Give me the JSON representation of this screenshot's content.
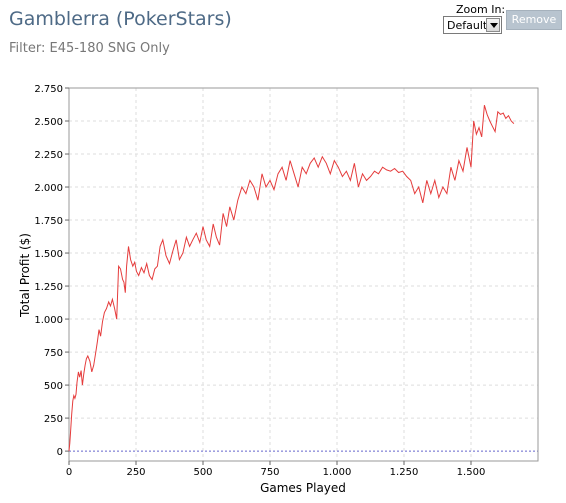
{
  "header": {
    "title": "Gamblerra (PokerStars)",
    "filter": "Filter: E45-180 SNG Only"
  },
  "controls": {
    "zoom_label": "Zoom In:",
    "zoom_value": "Default",
    "remove_label": "Remove"
  },
  "colors": {
    "line": "#e53c3c",
    "zero_line": "#6666cc",
    "grid": "#dddddd"
  },
  "chart_data": {
    "type": "line",
    "xlabel": "Games Played",
    "ylabel": "Total Profit ($)",
    "xlim": [
      0,
      1750
    ],
    "ylim": [
      -75,
      2750
    ],
    "xticks": [
      0,
      250,
      500,
      750,
      1000,
      1250,
      1500
    ],
    "xtick_labels": [
      "0",
      "250",
      "500",
      "750",
      "1.000",
      "1.250",
      "1.500"
    ],
    "yticks": [
      0,
      250,
      500,
      750,
      1000,
      1250,
      1500,
      1750,
      2000,
      2250,
      2500,
      2750
    ],
    "ytick_labels": [
      "0",
      "250",
      "500",
      "750",
      "1.000",
      "1.250",
      "1.500",
      "1.750",
      "2.000",
      "2.250",
      "2.500",
      "2.750"
    ],
    "grid": true,
    "reference_line_y": 0,
    "series": [
      {
        "x": [
          0,
          3,
          6,
          10,
          14,
          18,
          22,
          26,
          30,
          35,
          40,
          45,
          50,
          55,
          60,
          65,
          70,
          78,
          85,
          92,
          100,
          106,
          112,
          118,
          125,
          132,
          140,
          148,
          155,
          162,
          170,
          178,
          185,
          192,
          200,
          205,
          210,
          215,
          222,
          230,
          238,
          245,
          252,
          260,
          270,
          280,
          290,
          300,
          310,
          320,
          330,
          340,
          350,
          362,
          375,
          388,
          400,
          412,
          425,
          438,
          450,
          462,
          475,
          488,
          500,
          512,
          525,
          538,
          550,
          562,
          575,
          588,
          600,
          615,
          630,
          645,
          660,
          675,
          690,
          705,
          720,
          735,
          750,
          765,
          780,
          795,
          810,
          825,
          840,
          855,
          870,
          885,
          900,
          915,
          930,
          945,
          960,
          975,
          990,
          1005,
          1020,
          1035,
          1050,
          1065,
          1080,
          1095,
          1110,
          1125,
          1140,
          1155,
          1170,
          1185,
          1200,
          1215,
          1230,
          1245,
          1260,
          1275,
          1290,
          1305,
          1320,
          1335,
          1350,
          1365,
          1380,
          1395,
          1410,
          1425,
          1440,
          1455,
          1470,
          1485,
          1500,
          1510,
          1520,
          1530,
          1540,
          1550,
          1560,
          1570,
          1580,
          1590,
          1600,
          1610,
          1620,
          1630,
          1640,
          1650,
          1660
        ],
        "y": [
          0,
          60,
          150,
          280,
          380,
          420,
          400,
          430,
          520,
          600,
          560,
          610,
          500,
          580,
          650,
          700,
          720,
          680,
          600,
          650,
          750,
          830,
          920,
          870,
          980,
          1050,
          1080,
          1130,
          1100,
          1150,
          1080,
          1000,
          1400,
          1380,
          1300,
          1280,
          1200,
          1400,
          1550,
          1450,
          1400,
          1430,
          1360,
          1330,
          1390,
          1350,
          1420,
          1330,
          1300,
          1380,
          1400,
          1550,
          1600,
          1480,
          1420,
          1520,
          1600,
          1450,
          1500,
          1620,
          1550,
          1600,
          1650,
          1580,
          1700,
          1600,
          1550,
          1720,
          1620,
          1560,
          1800,
          1700,
          1850,
          1750,
          1900,
          2000,
          1950,
          2050,
          2000,
          1900,
          2100,
          2000,
          2050,
          1980,
          2100,
          2150,
          2050,
          2200,
          2100,
          2000,
          2150,
          2100,
          2180,
          2220,
          2150,
          2230,
          2180,
          2100,
          2200,
          2150,
          2080,
          2120,
          2050,
          2180,
          2000,
          2100,
          2050,
          2080,
          2120,
          2100,
          2150,
          2130,
          2120,
          2140,
          2110,
          2120,
          2080,
          2050,
          1950,
          2000,
          1880,
          2050,
          1950,
          2050,
          1920,
          2000,
          1950,
          2150,
          2050,
          2200,
          2120,
          2300,
          2150,
          2500,
          2400,
          2450,
          2380,
          2620,
          2550,
          2500,
          2460,
          2420,
          2570,
          2550,
          2560,
          2520,
          2540,
          2500,
          2480
        ]
      }
    ]
  }
}
